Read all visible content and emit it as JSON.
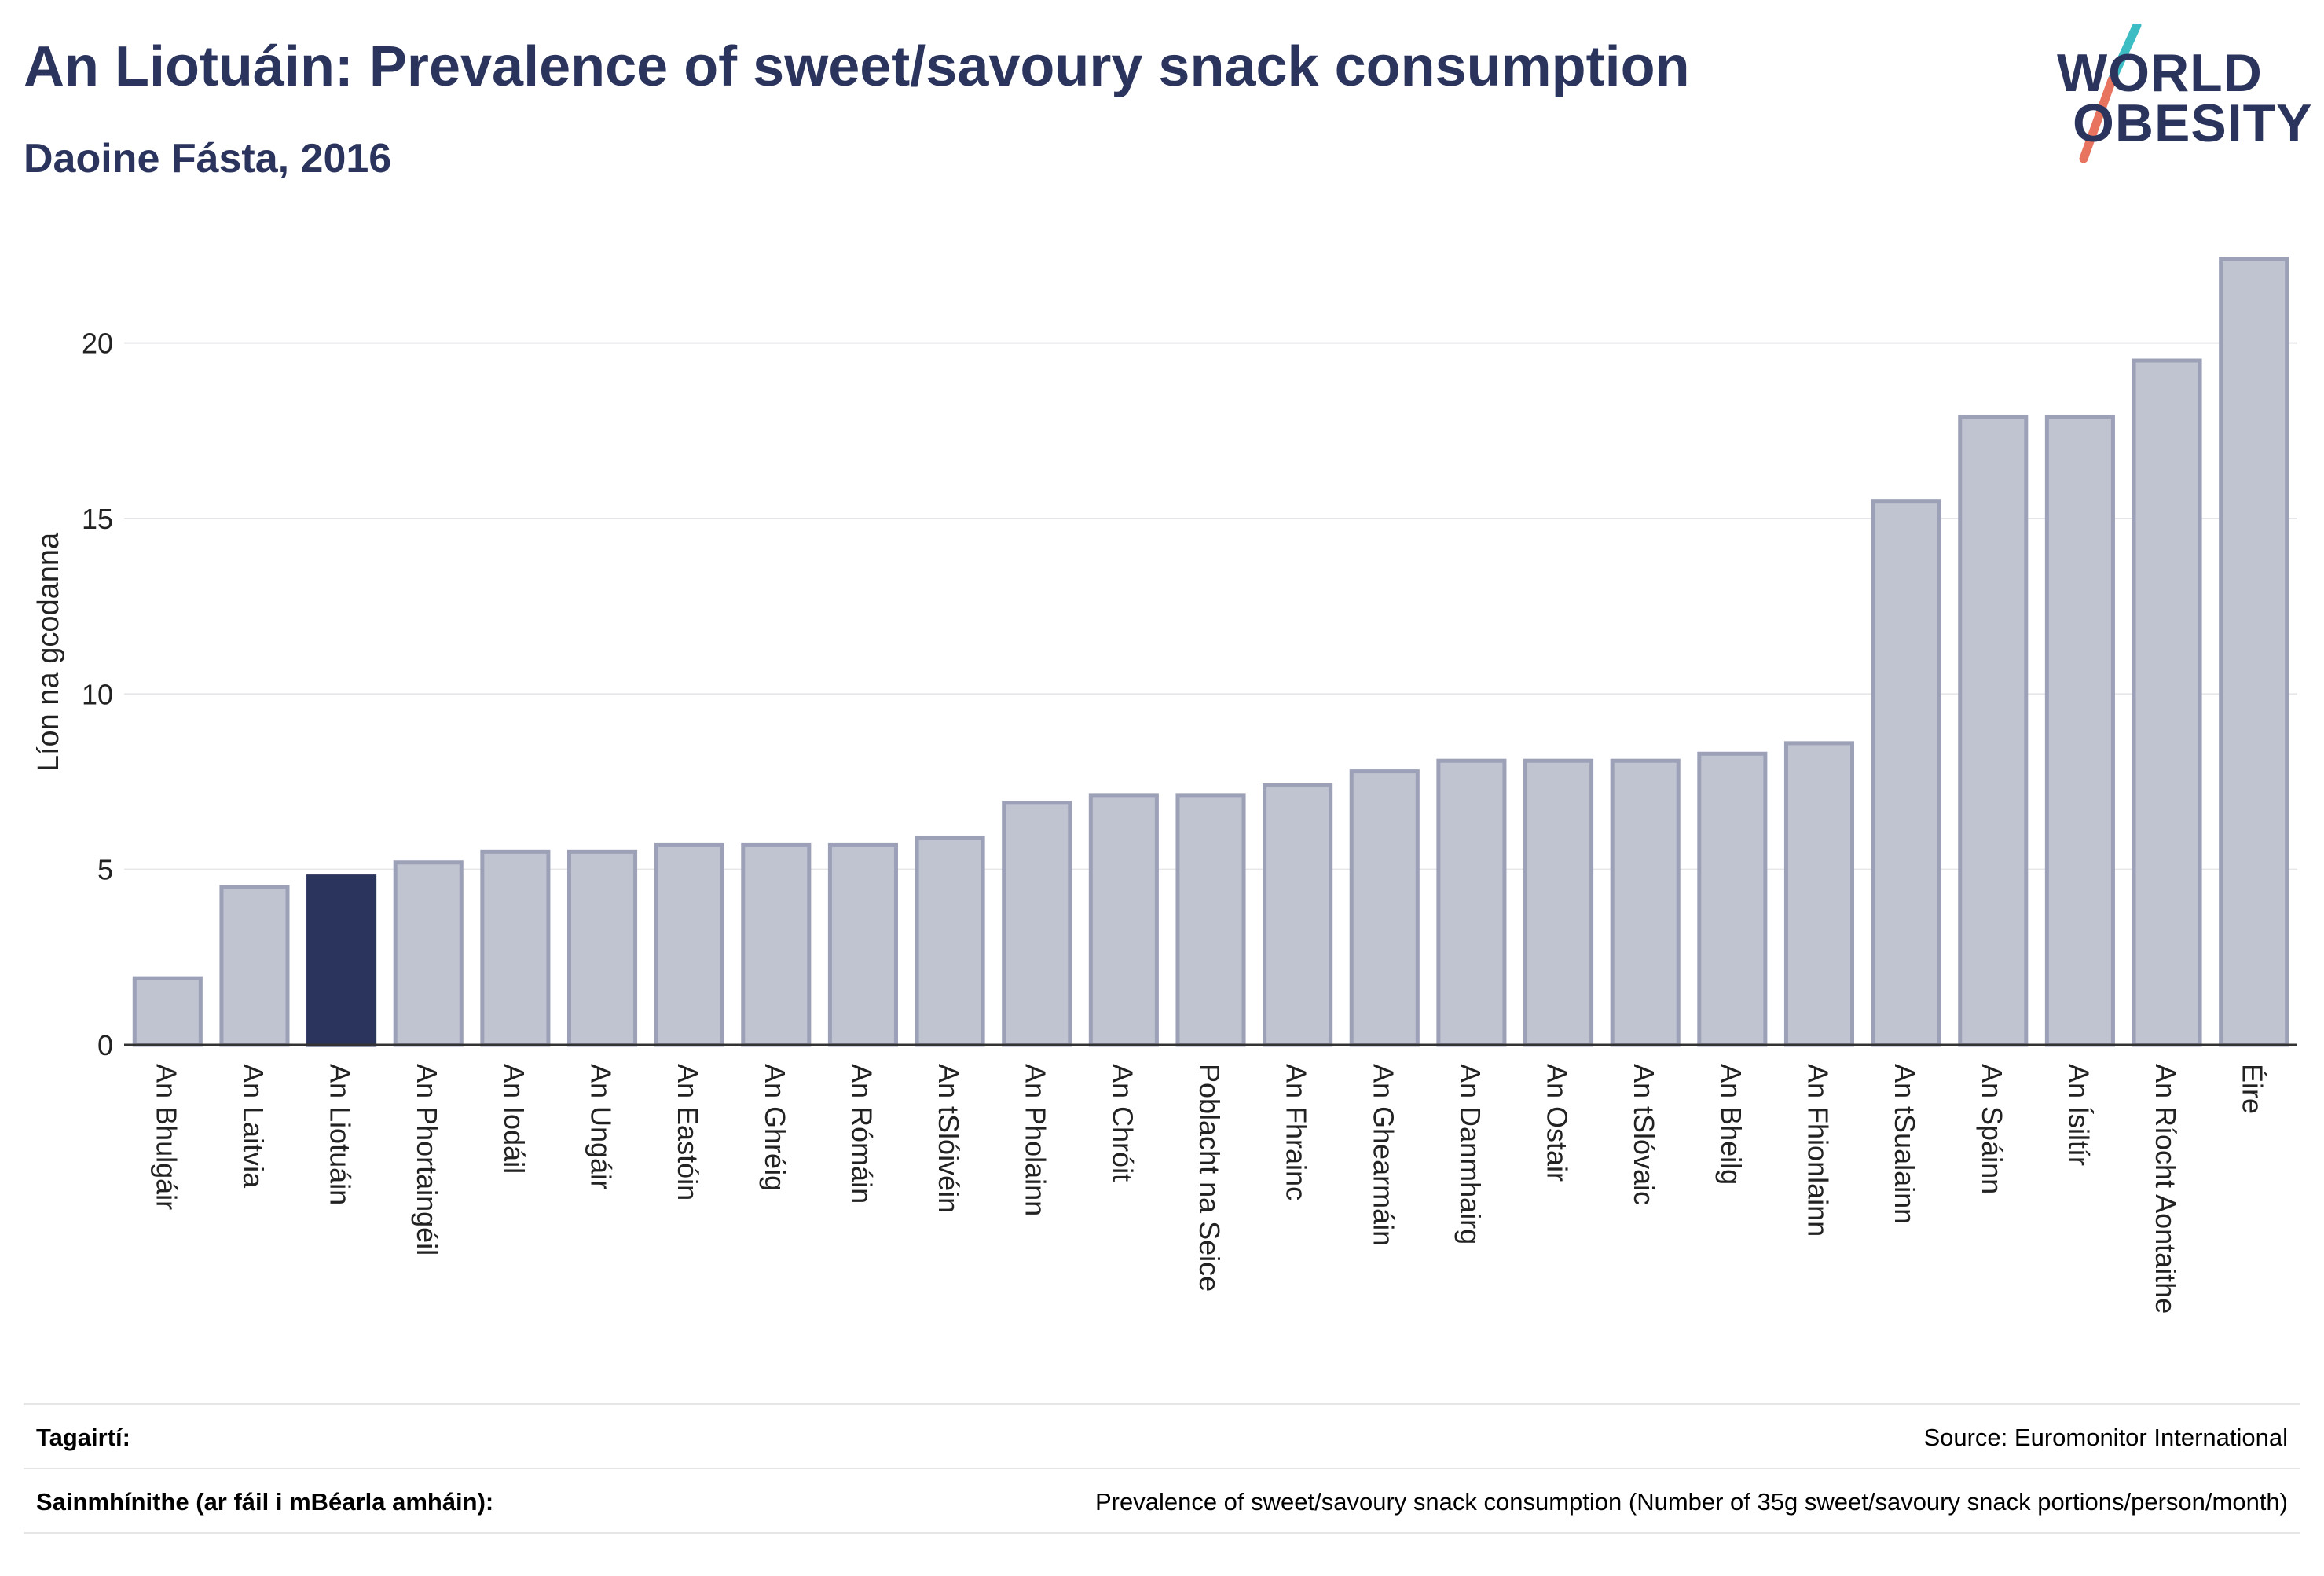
{
  "header": {
    "title": "An Liotuáin: Prevalence of sweet/savoury snack consumption",
    "subtitle": "Daoine Fásta, 2016"
  },
  "logo": {
    "line1": "WORLD",
    "line2": "OBESITY"
  },
  "chart_data": {
    "type": "bar",
    "ylabel": "Líon na gcodanna",
    "ylim": [
      0,
      22.5
    ],
    "yticks": [
      0,
      5,
      10,
      15,
      20
    ],
    "grid": true,
    "categories": [
      "An Bhulgáir",
      "An Laitvia",
      "An Liotuáin",
      "An Phortaingéil",
      "An Iodáil",
      "An Ungáir",
      "An Eastóin",
      "An Ghréig",
      "An Rómáin",
      "An tSlóivéin",
      "An Pholainn",
      "An Chróit",
      "Poblacht na Seice",
      "An Fhrainc",
      "An Ghearmáin",
      "An Danmhairg",
      "An Ostair",
      "An tSlóvaic",
      "An Bheilg",
      "An Fhionlainn",
      "An tSualainn",
      "An Spáinn",
      "An Ísiltír",
      "An Ríocht Aontaithe",
      "Éire"
    ],
    "values": [
      1.9,
      4.5,
      4.8,
      5.2,
      5.5,
      5.5,
      5.7,
      5.7,
      5.7,
      5.9,
      6.9,
      7.1,
      7.1,
      7.4,
      7.8,
      8.1,
      8.1,
      8.1,
      8.3,
      8.6,
      15.5,
      17.9,
      17.9,
      19.5,
      22.4
    ],
    "highlight": "An Liotuáin",
    "colors": {
      "bar": "#c0c3d0",
      "bar_border": "#9ca1b8",
      "highlight": "#2b345d",
      "grid": "#e6e6ea",
      "axis": "#333333"
    }
  },
  "footer": {
    "references_label": "Tagairtí:",
    "references_value": "Source: Euromonitor International",
    "definitions_label": "Sainmhínithe (ar fáil i mBéarla amháin):",
    "definitions_value": "Prevalence of sweet/savoury snack consumption (Number of 35g sweet/savoury snack portions/person/month)"
  }
}
